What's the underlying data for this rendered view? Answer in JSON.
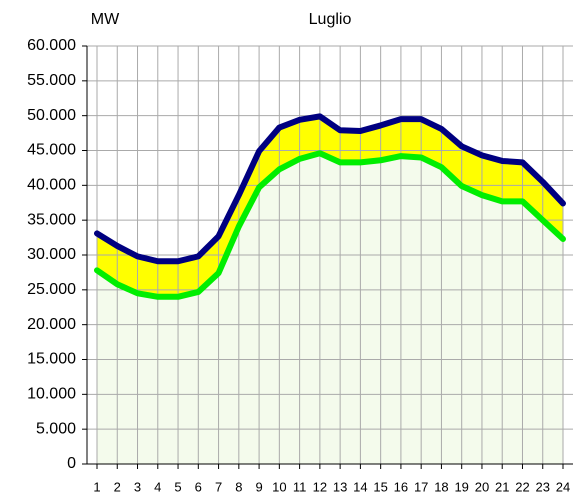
{
  "chart_data": {
    "type": "area",
    "title": "Luglio",
    "ylabel": "MW",
    "categories": [
      "1",
      "2",
      "3",
      "4",
      "5",
      "6",
      "7",
      "8",
      "9",
      "10",
      "11",
      "12",
      "13",
      "14",
      "15",
      "16",
      "17",
      "18",
      "19",
      "20",
      "21",
      "22",
      "23",
      "24"
    ],
    "series": [
      {
        "color": "#00ee00",
        "fill": "#f4fbec",
        "values": [
          27800,
          25800,
          24500,
          24000,
          24000,
          24700,
          27400,
          34100,
          39700,
          42300,
          43800,
          44600,
          43300,
          43300,
          43600,
          44200,
          44000,
          42600,
          39900,
          38600,
          37700,
          37700,
          35000,
          32300
        ]
      },
      {
        "color": "#000080",
        "fill": "#ffff00",
        "values": [
          33100,
          31300,
          29800,
          29100,
          29100,
          29800,
          32700,
          38600,
          44900,
          48300,
          49400,
          49900,
          47900,
          47800,
          48600,
          49500,
          49500,
          48100,
          45600,
          44300,
          43500,
          43300,
          40500,
          37400
        ]
      }
    ],
    "ylim": [
      0,
      60000
    ],
    "yticks": [
      0,
      {
        "value": 5000,
        "label": "5.000"
      },
      {
        "value": 10000,
        "label": "10.000"
      },
      {
        "value": 15000,
        "label": "15.000"
      },
      {
        "value": 20000,
        "label": "20.000"
      },
      {
        "value": 25000,
        "label": "25.000"
      },
      {
        "value": 30000,
        "label": "30.000"
      },
      {
        "value": 35000,
        "label": "35.000"
      },
      {
        "value": 40000,
        "label": "40.000"
      },
      {
        "value": 45000,
        "label": "45.000"
      },
      {
        "value": 50000,
        "label": "50.000"
      },
      {
        "value": 55000,
        "label": "55.000"
      },
      {
        "value": 60000,
        "label": "60.000"
      }
    ],
    "grid": true
  }
}
